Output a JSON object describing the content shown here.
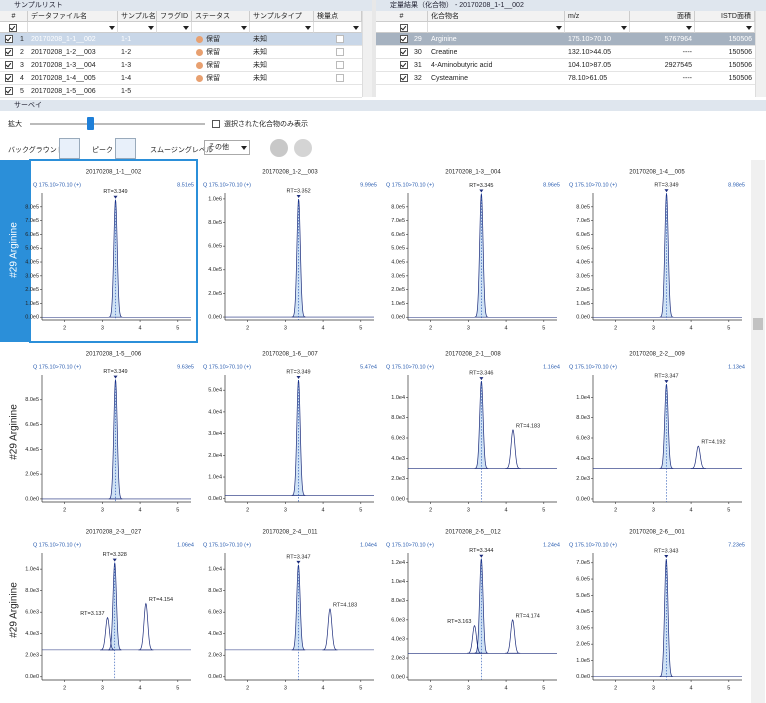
{
  "sample_list": {
    "title": "サンプルリスト",
    "columns": [
      "#",
      "データファイル名",
      "サンプル名",
      "フラグID",
      "ステータス",
      "サンプルタイプ",
      "検量点"
    ],
    "rows": [
      {
        "no": 1,
        "file": "20170208_1-1__002",
        "sample": "1-1",
        "status": "保留",
        "type": "未知"
      },
      {
        "no": 2,
        "file": "20170208_1-2__003",
        "sample": "1-2",
        "status": "保留",
        "type": "未知"
      },
      {
        "no": 3,
        "file": "20170208_1-3__004",
        "sample": "1-3",
        "status": "保留",
        "type": "未知"
      },
      {
        "no": 4,
        "file": "20170208_1-4__005",
        "sample": "1-4",
        "status": "保留",
        "type": "未知"
      },
      {
        "no": 5,
        "file": "20170208_1-5__006",
        "sample": "1-5"
      }
    ]
  },
  "quant_results": {
    "title": "定量結果（化合物） - 20170208_1-1__002",
    "columns": [
      "#",
      "化合物名",
      "m/z",
      "面積",
      "ISTD面積"
    ],
    "rows": [
      {
        "no": 29,
        "name": "Arginine",
        "mz": "175.10>70.10",
        "area": 5767964,
        "istd": 150506
      },
      {
        "no": 30,
        "name": "Creatine",
        "mz": "132.10>44.05",
        "area": "----",
        "istd": 150506
      },
      {
        "no": 31,
        "name": "4-Aminobutyric acid",
        "mz": "104.10>87.05",
        "area": 2927545,
        "istd": 150506
      },
      {
        "no": 32,
        "name": "Cysteamine",
        "mz": "78.10>61.05",
        "area": "----",
        "istd": 150506
      }
    ]
  },
  "survey": {
    "title": "サーベイ",
    "zoom_label": "拡大",
    "only_selected_label": "選択された化合物のみ表示",
    "background_label": "バックグラウンド",
    "peak_label": "ピーク",
    "smoothing_label": "スムージングレベル",
    "smoothing_value": "その他",
    "row_labels": [
      "#29 Arginine",
      "#29 Arginine",
      "#29 Arginine"
    ],
    "charts": [
      {
        "title": "20170208_1-1__002",
        "channel": "Q 175.10>70.10 (+)",
        "max_label": "8.51e5",
        "xlim": [
          1.4,
          5.35
        ],
        "xticks": [
          2,
          3,
          4,
          5
        ],
        "ylim": [
          -20000,
          900000
        ],
        "yticks": [
          {
            "value": 0,
            "label": "0.0e0"
          },
          {
            "value": 100000,
            "label": "1.0e5"
          },
          {
            "value": 200000,
            "label": "2.0e5"
          },
          {
            "value": 300000,
            "label": "3.0e5"
          },
          {
            "value": 400000,
            "label": "4.0e5"
          },
          {
            "value": 500000,
            "label": "5.0e5"
          },
          {
            "value": 600000,
            "label": "6.0e5"
          },
          {
            "value": 700000,
            "label": "7.0e5"
          },
          {
            "value": 800000,
            "label": "8.0e5"
          }
        ],
        "baseline": 0,
        "peaks": [
          {
            "rt": 3.349,
            "label": "RT=3.349",
            "height": 851000
          }
        ]
      },
      {
        "title": "20170208_1-2__003",
        "channel": "Q 175.10>70.10 (+)",
        "max_label": "9.99e5",
        "xlim": [
          1.4,
          5.35
        ],
        "xticks": [
          2,
          3,
          4,
          5
        ],
        "ylim": [
          -25000,
          1050000
        ],
        "yticks": [
          {
            "value": 0,
            "label": "0.0e0"
          },
          {
            "value": 200000,
            "label": "2.0e5"
          },
          {
            "value": 400000,
            "label": "4.0e5"
          },
          {
            "value": 600000,
            "label": "6.0e5"
          },
          {
            "value": 800000,
            "label": "8.0e5"
          },
          {
            "value": 1000000,
            "label": "1.0e6"
          }
        ],
        "baseline": 0,
        "peaks": [
          {
            "rt": 3.352,
            "label": "RT=3.352",
            "height": 999000
          }
        ]
      },
      {
        "title": "20170208_1-3__004",
        "channel": "Q 175.10>70.10 (+)",
        "max_label": "8.96e5",
        "xlim": [
          1.4,
          5.35
        ],
        "xticks": [
          2,
          3,
          4,
          5
        ],
        "ylim": [
          -20000,
          900000
        ],
        "yticks": [
          {
            "value": 0,
            "label": "0.0e0"
          },
          {
            "value": 100000,
            "label": "1.0e5"
          },
          {
            "value": 200000,
            "label": "2.0e5"
          },
          {
            "value": 300000,
            "label": "3.0e5"
          },
          {
            "value": 400000,
            "label": "4.0e5"
          },
          {
            "value": 500000,
            "label": "5.0e5"
          },
          {
            "value": 600000,
            "label": "6.0e5"
          },
          {
            "value": 700000,
            "label": "7.0e5"
          },
          {
            "value": 800000,
            "label": "8.0e5"
          }
        ],
        "baseline": 0,
        "peaks": [
          {
            "rt": 3.345,
            "label": "RT=3.345",
            "height": 896000
          }
        ]
      },
      {
        "title": "20170208_1-4__005",
        "channel": "Q 175.10>70.10 (+)",
        "max_label": "8.98e5",
        "xlim": [
          1.4,
          5.35
        ],
        "xticks": [
          2,
          3,
          4,
          5
        ],
        "ylim": [
          -20000,
          900000
        ],
        "yticks": [
          {
            "value": 0,
            "label": "0.0e0"
          },
          {
            "value": 100000,
            "label": "1.0e5"
          },
          {
            "value": 200000,
            "label": "2.0e5"
          },
          {
            "value": 300000,
            "label": "3.0e5"
          },
          {
            "value": 400000,
            "label": "4.0e5"
          },
          {
            "value": 500000,
            "label": "5.0e5"
          },
          {
            "value": 600000,
            "label": "6.0e5"
          },
          {
            "value": 700000,
            "label": "7.0e5"
          },
          {
            "value": 800000,
            "label": "8.0e5"
          }
        ],
        "baseline": 0,
        "peaks": [
          {
            "rt": 3.349,
            "label": "RT=3.349",
            "height": 898000
          }
        ]
      },
      {
        "title": "20170208_1-5__006",
        "channel": "Q 175.10>70.10 (+)",
        "max_label": "9.63e5",
        "xlim": [
          1.4,
          5.35
        ],
        "xticks": [
          2,
          3,
          4,
          5
        ],
        "ylim": [
          -25000,
          1000000
        ],
        "yticks": [
          {
            "value": 0,
            "label": "0.0e0"
          },
          {
            "value": 200000,
            "label": "2.0e5"
          },
          {
            "value": 400000,
            "label": "4.0e5"
          },
          {
            "value": 600000,
            "label": "6.0e5"
          },
          {
            "value": 800000,
            "label": "8.0e5"
          }
        ],
        "baseline": 0,
        "peaks": [
          {
            "rt": 3.349,
            "label": "RT=3.349",
            "height": 963000
          }
        ]
      },
      {
        "title": "20170208_1-6__007",
        "channel": "Q 175.10>70.10 (+)",
        "max_label": "5.47e4",
        "xlim": [
          1.4,
          5.35
        ],
        "xticks": [
          2,
          3,
          4,
          5
        ],
        "ylim": [
          -1500,
          57000
        ],
        "yticks": [
          {
            "value": 0,
            "label": "0.0e0"
          },
          {
            "value": 10000,
            "label": "1.0e4"
          },
          {
            "value": 20000,
            "label": "2.0e4"
          },
          {
            "value": 30000,
            "label": "3.0e4"
          },
          {
            "value": 40000,
            "label": "4.0e4"
          },
          {
            "value": 50000,
            "label": "5.0e4"
          }
        ],
        "baseline": 1500,
        "peaks": [
          {
            "rt": 3.349,
            "label": "RT=3.349",
            "height": 54700
          }
        ]
      },
      {
        "title": "20170208_2-1__008",
        "channel": "Q 175.10>70.10 (+)",
        "max_label": "1.16e4",
        "xlim": [
          1.4,
          5.35
        ],
        "xticks": [
          2,
          3,
          4,
          5
        ],
        "ylim": [
          -300,
          12200
        ],
        "yticks": [
          {
            "value": 0,
            "label": "0.0e0"
          },
          {
            "value": 2000,
            "label": "2.0e3"
          },
          {
            "value": 4000,
            "label": "4.0e3"
          },
          {
            "value": 6000,
            "label": "6.0e3"
          },
          {
            "value": 8000,
            "label": "8.0e3"
          },
          {
            "value": 10000,
            "label": "1.0e4"
          }
        ],
        "baseline": 3000,
        "peaks": [
          {
            "rt": 3.346,
            "label": "RT=3.346",
            "height": 11600
          },
          {
            "rt": 4.183,
            "label": "RT=4.183",
            "height": 6800
          }
        ]
      },
      {
        "title": "20170208_2-2__009",
        "channel": "Q 175.10>70.10 (+)",
        "max_label": "1.13e4",
        "xlim": [
          1.4,
          5.35
        ],
        "xticks": [
          2,
          3,
          4,
          5
        ],
        "ylim": [
          -300,
          12200
        ],
        "yticks": [
          {
            "value": 0,
            "label": "0.0e0"
          },
          {
            "value": 2000,
            "label": "2.0e3"
          },
          {
            "value": 4000,
            "label": "4.0e3"
          },
          {
            "value": 6000,
            "label": "6.0e3"
          },
          {
            "value": 8000,
            "label": "8.0e3"
          },
          {
            "value": 10000,
            "label": "1.0e4"
          }
        ],
        "baseline": 3000,
        "peaks": [
          {
            "rt": 3.347,
            "label": "RT=3.347",
            "height": 11300
          },
          {
            "rt": 4.192,
            "label": "RT=4.192",
            "height": 5200
          }
        ]
      },
      {
        "title": "20170208_2-3__027",
        "channel": "Q 175.10>70.10 (+)",
        "max_label": "1.06e4",
        "xlim": [
          1.4,
          5.35
        ],
        "xticks": [
          2,
          3,
          4,
          5
        ],
        "ylim": [
          -300,
          11500
        ],
        "yticks": [
          {
            "value": 0,
            "label": "0.0e0"
          },
          {
            "value": 2000,
            "label": "2.0e3"
          },
          {
            "value": 4000,
            "label": "4.0e3"
          },
          {
            "value": 6000,
            "label": "6.0e3"
          },
          {
            "value": 8000,
            "label": "8.0e3"
          },
          {
            "value": 10000,
            "label": "1.0e4"
          }
        ],
        "baseline": 2500,
        "peaks": [
          {
            "rt": 3.328,
            "label": "RT=3.328",
            "height": 10600
          },
          {
            "rt": 3.137,
            "label": "RT=3.137",
            "height": 5500
          },
          {
            "rt": 4.154,
            "label": "RT=4.154",
            "height": 6800
          }
        ]
      },
      {
        "title": "20170208_2-4__011",
        "channel": "Q 175.10>70.10 (+)",
        "max_label": "1.04e4",
        "xlim": [
          1.4,
          5.35
        ],
        "xticks": [
          2,
          3,
          4,
          5
        ],
        "ylim": [
          -300,
          11500
        ],
        "yticks": [
          {
            "value": 0,
            "label": "0.0e0"
          },
          {
            "value": 2000,
            "label": "2.0e3"
          },
          {
            "value": 4000,
            "label": "4.0e3"
          },
          {
            "value": 6000,
            "label": "6.0e3"
          },
          {
            "value": 8000,
            "label": "8.0e3"
          },
          {
            "value": 10000,
            "label": "1.0e4"
          }
        ],
        "baseline": 2500,
        "peaks": [
          {
            "rt": 3.347,
            "label": "RT=3.347",
            "height": 10400
          },
          {
            "rt": 4.183,
            "label": "RT=4.183",
            "height": 6300
          }
        ]
      },
      {
        "title": "20170208_2-5__012",
        "channel": "Q 175.10>70.10 (+)",
        "max_label": "1.24e4",
        "xlim": [
          1.4,
          5.35
        ],
        "xticks": [
          2,
          3,
          4,
          5
        ],
        "ylim": [
          -300,
          13000
        ],
        "yticks": [
          {
            "value": 0,
            "label": "0.0e0"
          },
          {
            "value": 2000,
            "label": "2.0e3"
          },
          {
            "value": 4000,
            "label": "4.0e3"
          },
          {
            "value": 6000,
            "label": "6.0e3"
          },
          {
            "value": 8000,
            "label": "8.0e3"
          },
          {
            "value": 10000,
            "label": "1.0e4"
          },
          {
            "value": 12000,
            "label": "1.2e4"
          }
        ],
        "baseline": 2500,
        "peaks": [
          {
            "rt": 3.344,
            "label": "RT=3.344",
            "height": 12400
          },
          {
            "rt": 3.163,
            "label": "RT=3.163",
            "height": 5400
          },
          {
            "rt": 4.174,
            "label": "RT=4.174",
            "height": 6000
          }
        ]
      },
      {
        "title": "20170208_2-6__001",
        "channel": "Q 175.10>70.10 (+)",
        "max_label": "7.23e5",
        "xlim": [
          1.4,
          5.35
        ],
        "xticks": [
          2,
          3,
          4,
          5
        ],
        "ylim": [
          -20000,
          760000
        ],
        "yticks": [
          {
            "value": 0,
            "label": "0.0e0"
          },
          {
            "value": 100000,
            "label": "1.0e5"
          },
          {
            "value": 200000,
            "label": "2.0e5"
          },
          {
            "value": 300000,
            "label": "3.0e5"
          },
          {
            "value": 400000,
            "label": "4.0e5"
          },
          {
            "value": 500000,
            "label": "5.0e5"
          },
          {
            "value": 600000,
            "label": "6.0e5"
          },
          {
            "value": 700000,
            "label": "7.0e5"
          }
        ],
        "baseline": 0,
        "peaks": [
          {
            "rt": 3.343,
            "label": "RT=3.343",
            "height": 723000
          }
        ]
      }
    ]
  }
}
